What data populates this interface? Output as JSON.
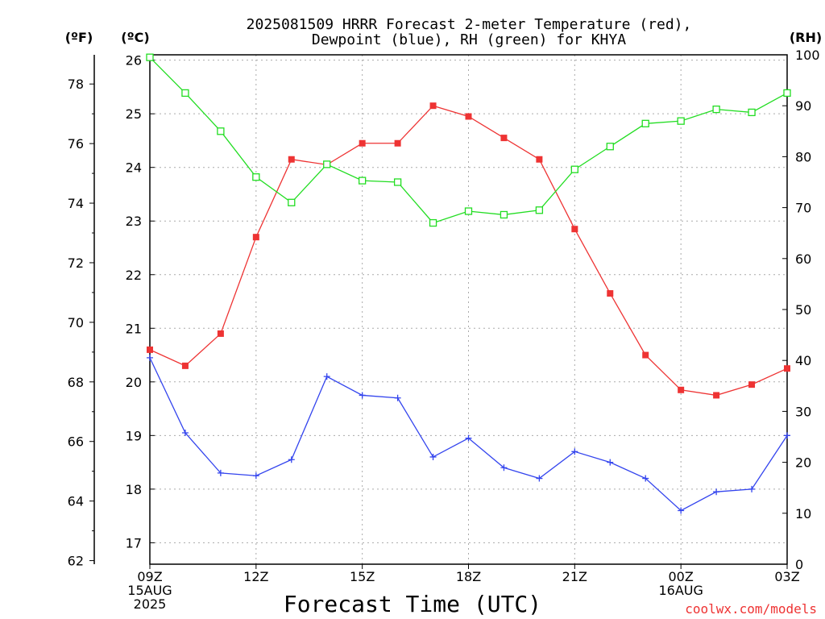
{
  "chart_data": {
    "type": "line",
    "title_line1": "2025081509 HRRR Forecast 2-meter Temperature (red),",
    "title_line2": "Dewpoint (blue), RH (green) for KHYA",
    "unit_f": "(ºF)",
    "unit_c": "(ºC)",
    "unit_rh": "(RH)",
    "xlabel": "Forecast Time (UTC)",
    "credit": "coolwx.com/models",
    "x_tick_labels": [
      {
        "hour": 0,
        "lines": [
          "09Z",
          "15AUG",
          "2025"
        ]
      },
      {
        "hour": 3,
        "lines": [
          "12Z"
        ]
      },
      {
        "hour": 6,
        "lines": [
          "15Z"
        ]
      },
      {
        "hour": 9,
        "lines": [
          "18Z"
        ]
      },
      {
        "hour": 12,
        "lines": [
          "21Z"
        ]
      },
      {
        "hour": 15,
        "lines": [
          "00Z",
          "16AUG"
        ]
      },
      {
        "hour": 18,
        "lines": [
          "03Z"
        ]
      }
    ],
    "x_range_hours": [
      0,
      18
    ],
    "c_ticks": [
      "17",
      "18",
      "19",
      "20",
      "21",
      "22",
      "23",
      "24",
      "25",
      "26"
    ],
    "c_range": [
      16.6,
      26.1
    ],
    "f_ticks": [
      "62",
      "64",
      "66",
      "68",
      "70",
      "72",
      "74",
      "76",
      "78"
    ],
    "rh_ticks": [
      "0",
      "10",
      "20",
      "30",
      "40",
      "50",
      "60",
      "70",
      "80",
      "90",
      "100"
    ],
    "rh_range": [
      0,
      100
    ],
    "grid": true,
    "series": [
      {
        "name": "Temperature",
        "color": "#ee3333",
        "marker": "filled-square",
        "axis": "celsius",
        "values": [
          20.6,
          20.3,
          20.9,
          22.7,
          24.15,
          24.05,
          24.45,
          24.45,
          25.15,
          24.95,
          24.55,
          24.15,
          22.85,
          21.65,
          20.5,
          19.85,
          19.75,
          19.95,
          20.25
        ]
      },
      {
        "name": "Dewpoint",
        "color": "#3344ee",
        "marker": "plus",
        "axis": "celsius",
        "values": [
          20.45,
          19.05,
          18.3,
          18.25,
          18.55,
          20.1,
          19.75,
          19.7,
          18.6,
          18.95,
          18.4,
          18.2,
          18.7,
          18.5,
          18.2,
          17.6,
          17.95,
          18.0,
          19.0
        ]
      },
      {
        "name": "RH",
        "color": "#22dd22",
        "marker": "open-square",
        "axis": "rh",
        "values": [
          99.5,
          92.5,
          85,
          76,
          71,
          78.5,
          75.3,
          75,
          67,
          69.3,
          68.6,
          69.5,
          77.5,
          82,
          86.5,
          87,
          89.3,
          88.7,
          92.5
        ]
      }
    ]
  }
}
